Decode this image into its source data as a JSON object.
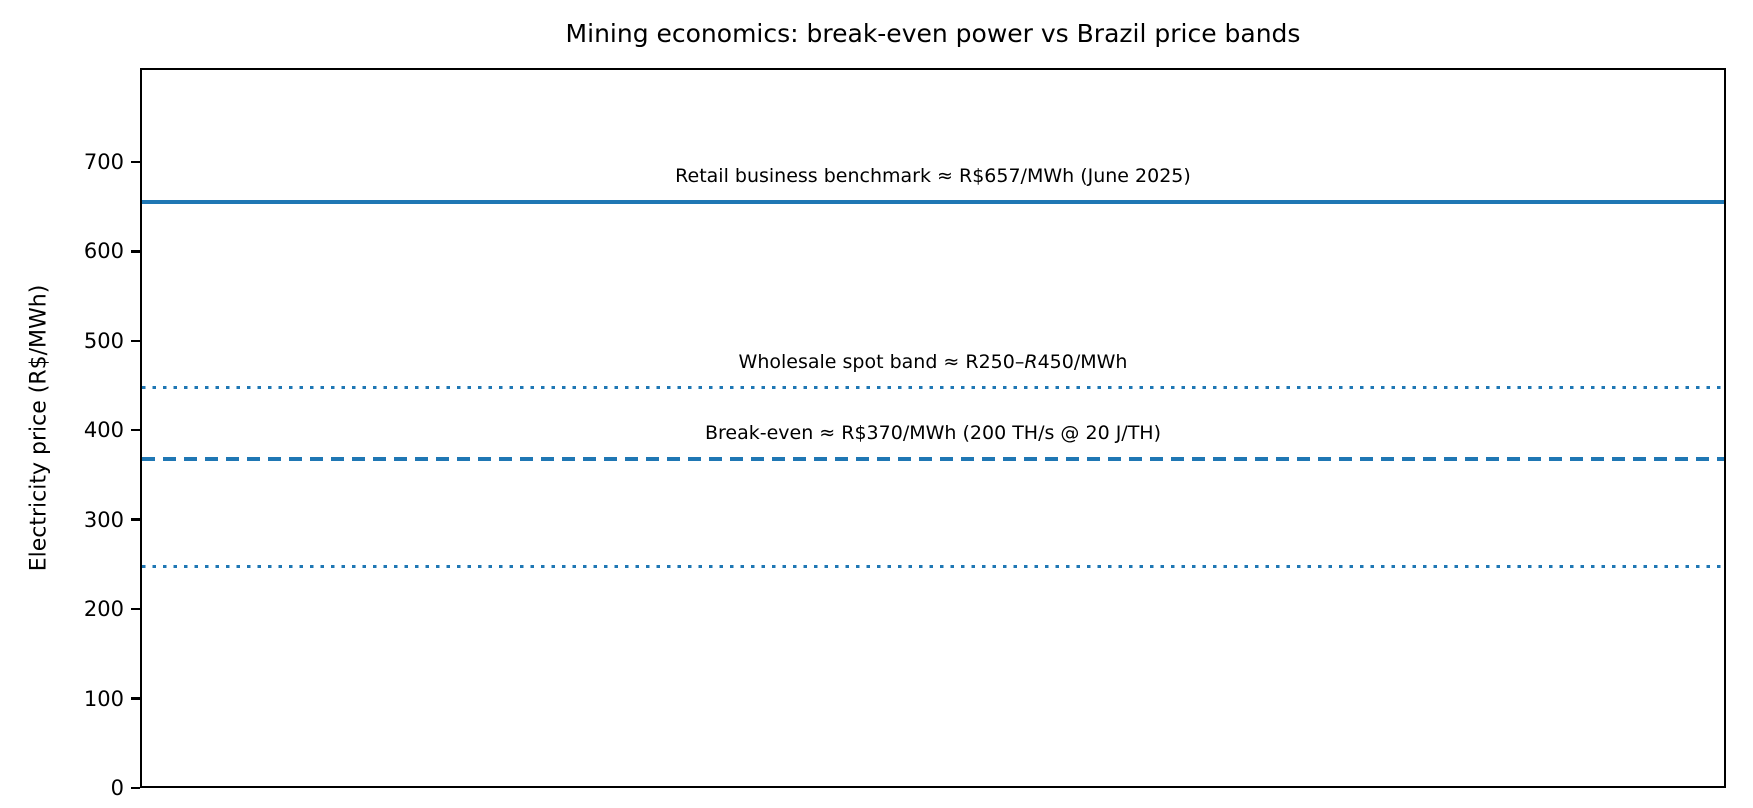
{
  "figure": {
    "title": "Mining economics: break-even power vs Brazil price bands",
    "ylabel": "Electricity price (R$/MWh)"
  },
  "chart_data": {
    "type": "line",
    "title": "Mining economics: break-even power vs Brazil price bands",
    "xlabel": "",
    "ylabel": "Electricity price (R$/MWh)",
    "ylim": [
      0,
      805
    ],
    "yticks": [
      0,
      100,
      200,
      300,
      400,
      500,
      600,
      700
    ],
    "xticks": [],
    "grid": false,
    "legend_position": "none",
    "line_color": "#1f77b4",
    "axis_color": "#000000",
    "lines": [
      {
        "name": "retail-benchmark",
        "value": 657,
        "style": "solid",
        "thickness": 4,
        "label": "Retail business benchmark ≈ R$657/MWh (June 2025)"
      },
      {
        "name": "wholesale-band-upper",
        "value": 450,
        "style": "dotted",
        "thickness": 3.5,
        "label_parts": [
          {
            "text": "Wholesale spot band ≈ R250–"
          },
          {
            "text": "R",
            "italic": true
          },
          {
            "text": "450/MWh"
          }
        ]
      },
      {
        "name": "break-even",
        "value": 370,
        "style": "dashed",
        "thickness": 4,
        "label": "Break-even ≈ R$370/MWh (200 TH/s @ 20 J/TH)"
      },
      {
        "name": "wholesale-band-lower",
        "value": 250,
        "style": "dotted",
        "thickness": 3.5
      }
    ]
  }
}
